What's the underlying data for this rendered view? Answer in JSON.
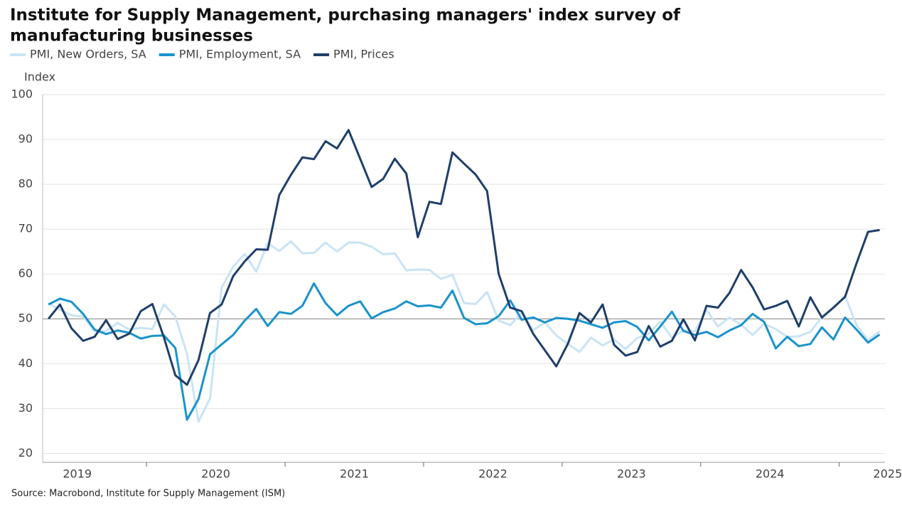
{
  "chart_data": {
    "type": "line",
    "title": [
      "Institute for Supply Management, purchasing managers' index survey of",
      "manufacturing businesses"
    ],
    "y_label": "Index",
    "source": "Source: Macrobond, Institute for Supply Management (ISM)",
    "x": [
      2019.292,
      2019.375,
      2019.458,
      2019.542,
      2019.625,
      2019.708,
      2019.792,
      2019.875,
      2019.958,
      2020.042,
      2020.125,
      2020.208,
      2020.292,
      2020.375,
      2020.458,
      2020.542,
      2020.625,
      2020.708,
      2020.792,
      2020.875,
      2020.958,
      2021.042,
      2021.125,
      2021.208,
      2021.292,
      2021.375,
      2021.458,
      2021.542,
      2021.625,
      2021.708,
      2021.792,
      2021.875,
      2021.958,
      2022.042,
      2022.125,
      2022.208,
      2022.292,
      2022.375,
      2022.458,
      2022.542,
      2022.625,
      2022.708,
      2022.792,
      2022.875,
      2022.958,
      2023.042,
      2023.125,
      2023.208,
      2023.292,
      2023.375,
      2023.458,
      2023.542,
      2023.625,
      2023.708,
      2023.792,
      2023.875,
      2023.958,
      2024.042,
      2024.125,
      2024.208,
      2024.292,
      2024.375,
      2024.458,
      2024.542,
      2024.625,
      2024.708,
      2024.792,
      2024.875,
      2024.958,
      2025.042,
      2025.125,
      2025.208,
      2025.292
    ],
    "series": [
      {
        "name": "PMI, New Orders, SA",
        "color": "#c9e4f4",
        "values": [
          53.5,
          52.0,
          50.8,
          50.5,
          47.2,
          47.3,
          49.1,
          47.6,
          48.0,
          47.7,
          53.2,
          50.5,
          42.2,
          27.1,
          32.2,
          57.0,
          61.6,
          64.5,
          60.5,
          66.9,
          65.1,
          67.3,
          64.6,
          64.7,
          67.0,
          65.0,
          67.0,
          67.0,
          66.1,
          64.4,
          64.6,
          60.8,
          61.0,
          60.9,
          58.9,
          59.8,
          53.5,
          53.3,
          56.0,
          49.6,
          48.6,
          51.3,
          47.5,
          49.2,
          46.3,
          44.4,
          42.6,
          45.8,
          44.1,
          45.4,
          43.3,
          45.7,
          46.7,
          49.4,
          45.8,
          47.4,
          47.2,
          52.0,
          48.3,
          50.3,
          48.7,
          46.4,
          48.9,
          47.7,
          46.0,
          46.1,
          47.1,
          50.4,
          52.5,
          55.1,
          48.6,
          45.2,
          47.2
        ]
      },
      {
        "name": "PMI, Employment, SA",
        "color": "#1a93cc",
        "values": [
          53.2,
          54.5,
          53.8,
          51.1,
          47.6,
          46.6,
          47.4,
          46.9,
          45.6,
          46.2,
          46.3,
          43.5,
          27.5,
          32.1,
          42.1,
          44.3,
          46.4,
          49.6,
          52.2,
          48.4,
          51.5,
          51.1,
          52.9,
          57.9,
          53.5,
          50.8,
          52.9,
          53.9,
          50.1,
          51.5,
          52.3,
          53.9,
          52.8,
          53.0,
          52.5,
          56.3,
          50.2,
          48.8,
          49.0,
          50.6,
          54.1,
          49.8,
          50.3,
          49.2,
          50.2,
          50.0,
          49.6,
          48.8,
          48.0,
          49.2,
          49.5,
          48.2,
          45.2,
          48.3,
          51.6,
          47.3,
          46.4,
          47.1,
          45.9,
          47.4,
          48.6,
          51.1,
          49.3,
          43.4,
          46.0,
          43.9,
          44.4,
          48.1,
          45.4,
          50.3,
          47.6,
          44.7,
          46.5
        ]
      },
      {
        "name": "PMI, Prices",
        "color": "#1f3f6b",
        "values": [
          50.0,
          53.2,
          47.9,
          45.1,
          46.0,
          49.7,
          45.5,
          46.7,
          51.7,
          53.3,
          45.9,
          37.4,
          35.3,
          40.8,
          51.3,
          53.2,
          59.5,
          62.8,
          65.5,
          65.4,
          77.6,
          82.1,
          86.0,
          85.6,
          89.6,
          88.0,
          92.1,
          85.7,
          79.4,
          81.2,
          85.7,
          82.4,
          68.2,
          76.1,
          75.6,
          87.1,
          84.6,
          82.2,
          78.5,
          60.0,
          52.5,
          51.7,
          46.6,
          43.0,
          39.4,
          44.5,
          51.3,
          49.2,
          53.2,
          44.2,
          41.8,
          42.6,
          48.4,
          43.8,
          45.1,
          49.9,
          45.2,
          52.9,
          52.5,
          55.8,
          60.9,
          57.0,
          52.1,
          52.9,
          54.0,
          48.3,
          54.8,
          50.3,
          52.5,
          54.9,
          62.4,
          69.4,
          69.8
        ]
      }
    ],
    "xlim": [
      2019.25,
      2025.33
    ],
    "xticks": [
      {
        "value": 2019.5,
        "label": "2019"
      },
      {
        "value": 2020.5,
        "label": "2020"
      },
      {
        "value": 2021.5,
        "label": "2021"
      },
      {
        "value": 2022.5,
        "label": "2022"
      },
      {
        "value": 2023.5,
        "label": "2023"
      },
      {
        "value": 2024.5,
        "label": "2024"
      },
      {
        "value": 2025.35,
        "label": "2025"
      }
    ],
    "ylim": [
      18,
      100
    ],
    "yticks": [
      20,
      30,
      40,
      50,
      60,
      70,
      80,
      90,
      100
    ],
    "grid": true,
    "reference_line": 50,
    "legend": "top-left"
  }
}
